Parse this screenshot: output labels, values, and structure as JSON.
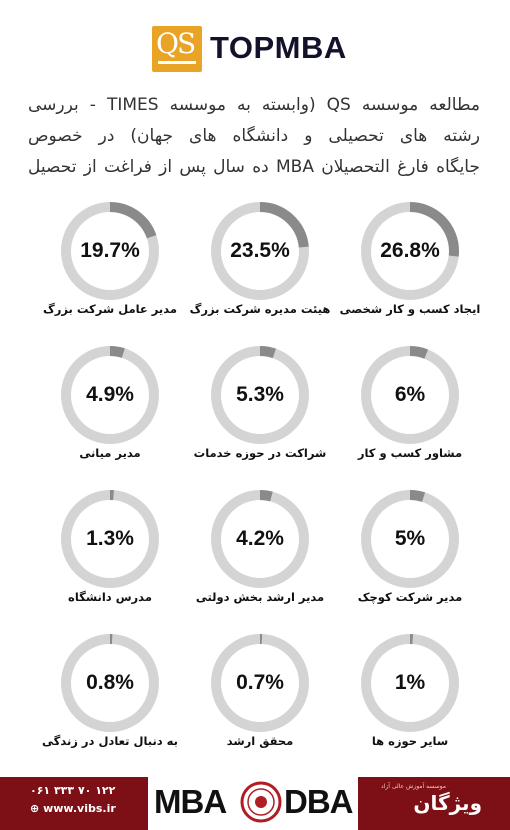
{
  "header": {
    "logo_mark": "QS",
    "logo_text": "TOPMBA",
    "brand_color": "#e9a325"
  },
  "intro": {
    "line1": "مطالعه موسسه QS (وابسته به موسسه TIMES - بررسی",
    "line2": "رشته های تحصیلی و دانشگاه های جهان) در خصوص",
    "line3": "جایگاه فارغ التحصیلان MBA ده سال پس از فراغت از تحصیل"
  },
  "chart_data": {
    "type": "pie",
    "style": "donut-rings",
    "ring_color": "#d4d4d4",
    "highlight_color": "#8a8a8a",
    "categories": [
      "ایجاد کسب و کار شخصی",
      "هیئت مدیره شرکت بزرگ",
      "مدیر عامل شرکت بزرگ",
      "مشاور کسب و کار",
      "شراکت در حوزه خدمات",
      "مدیر میانی",
      "مدیر شرکت کوچک",
      "مدیر ارشد بخش دولتی",
      "مدرس دانشگاه",
      "سایر حوزه ها",
      "محقق ارشد",
      "به دنبال تعادل در زندگی"
    ],
    "values": [
      26.8,
      23.5,
      19.7,
      6,
      5.3,
      4.9,
      5,
      4.2,
      1.3,
      1,
      0.7,
      0.8
    ],
    "value_labels": [
      "26.8%",
      "23.5%",
      "19.7%",
      "6%",
      "5.3%",
      "4.9%",
      "5%",
      "4.2%",
      "1.3%",
      "1%",
      "0.7%",
      "0.8%"
    ],
    "unit": "%"
  },
  "footer": {
    "phone": "۰۶۱ ۳۳۳ ۷۰ ۱۲۲",
    "website": "www.vibs.ir",
    "logo_left": "MBA",
    "logo_right": "DBA",
    "brand": "ویژگان",
    "brand_subtitle": "موسسه آموزش عالی آزاد",
    "footer_color": "#7d1016"
  }
}
